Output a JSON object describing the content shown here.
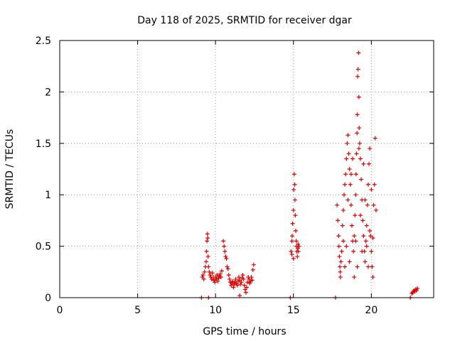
{
  "chart_data": {
    "type": "scatter",
    "title": "Day 118 of 2025, SRMTID for receiver dgar",
    "xlabel": "GPS time / hours",
    "ylabel": "SRMTID / TECUs",
    "xlim": [
      0,
      24
    ],
    "ylim": [
      0,
      2.5
    ],
    "xticks": [
      0,
      5,
      10,
      15,
      20
    ],
    "yticks": [
      0,
      0.5,
      1,
      1.5,
      2,
      2.5
    ],
    "xtick_labels": [
      "0",
      "5",
      "10",
      "15",
      "20"
    ],
    "ytick_labels": [
      "0",
      "0.5",
      "1",
      "1.5",
      "2",
      "2.5"
    ],
    "grid": true,
    "marker": "+",
    "color": "#dd0000",
    "series": [
      {
        "name": "SRMTID",
        "points": [
          [
            9.1,
            0.0
          ],
          [
            9.55,
            0.0
          ],
          [
            9.15,
            0.2
          ],
          [
            9.2,
            0.22
          ],
          [
            9.25,
            0.18
          ],
          [
            9.3,
            0.25
          ],
          [
            9.35,
            0.3
          ],
          [
            9.4,
            0.35
          ],
          [
            9.42,
            0.45
          ],
          [
            9.45,
            0.55
          ],
          [
            9.48,
            0.62
          ],
          [
            9.5,
            0.58
          ],
          [
            9.52,
            0.4
          ],
          [
            9.55,
            0.3
          ],
          [
            9.6,
            0.25
          ],
          [
            9.65,
            0.22
          ],
          [
            9.7,
            0.2
          ],
          [
            9.75,
            0.18
          ],
          [
            9.8,
            0.24
          ],
          [
            9.85,
            0.2
          ],
          [
            9.9,
            0.17
          ],
          [
            9.95,
            0.15
          ],
          [
            10.0,
            0.2
          ],
          [
            10.05,
            0.18
          ],
          [
            10.1,
            0.22
          ],
          [
            10.15,
            0.16
          ],
          [
            10.2,
            0.19
          ],
          [
            10.25,
            0.21
          ],
          [
            10.3,
            0.23
          ],
          [
            10.35,
            0.2
          ],
          [
            10.4,
            0.26
          ],
          [
            10.5,
            0.55
          ],
          [
            10.55,
            0.5
          ],
          [
            10.6,
            0.45
          ],
          [
            10.65,
            0.4
          ],
          [
            10.7,
            0.38
          ],
          [
            10.75,
            0.3
          ],
          [
            10.8,
            0.28
          ],
          [
            10.85,
            0.22
          ],
          [
            10.9,
            0.18
          ],
          [
            10.95,
            0.15
          ],
          [
            11.0,
            0.12
          ],
          [
            11.05,
            0.14
          ],
          [
            11.1,
            0.16
          ],
          [
            11.15,
            0.1
          ],
          [
            11.2,
            0.13
          ],
          [
            11.25,
            0.15
          ],
          [
            11.3,
            0.18
          ],
          [
            11.35,
            0.14
          ],
          [
            11.4,
            0.12
          ],
          [
            11.45,
            0.16
          ],
          [
            11.5,
            0.2
          ],
          [
            11.55,
            0.17
          ],
          [
            11.6,
            0.13
          ],
          [
            11.65,
            0.15
          ],
          [
            11.7,
            0.19
          ],
          [
            11.75,
            0.22
          ],
          [
            11.8,
            0.18
          ],
          [
            11.85,
            0.12
          ],
          [
            11.9,
            0.08
          ],
          [
            11.95,
            0.05
          ],
          [
            12.0,
            0.1
          ],
          [
            12.05,
            0.15
          ],
          [
            12.1,
            0.2
          ],
          [
            12.15,
            0.18
          ],
          [
            12.2,
            0.14
          ],
          [
            12.25,
            0.16
          ],
          [
            12.3,
            0.2
          ],
          [
            12.35,
            0.17
          ],
          [
            12.4,
            0.27
          ],
          [
            12.45,
            0.32
          ],
          [
            11.55,
            0.02
          ],
          [
            14.8,
            0.0
          ],
          [
            14.85,
            0.45
          ],
          [
            14.9,
            0.55
          ],
          [
            14.92,
            0.6
          ],
          [
            14.95,
            0.72
          ],
          [
            15.0,
            0.85
          ],
          [
            15.02,
            1.05
          ],
          [
            15.05,
            1.2
          ],
          [
            15.08,
            1.1
          ],
          [
            15.1,
            0.95
          ],
          [
            15.12,
            0.8
          ],
          [
            15.15,
            0.65
          ],
          [
            15.18,
            0.55
          ],
          [
            15.2,
            0.5
          ],
          [
            15.22,
            0.45
          ],
          [
            15.25,
            0.4
          ],
          [
            15.28,
            0.48
          ],
          [
            15.3,
            0.52
          ],
          [
            15.32,
            0.45
          ],
          [
            15.35,
            0.5
          ],
          [
            14.9,
            0.42
          ],
          [
            15.0,
            0.38
          ],
          [
            17.7,
            0.0
          ],
          [
            17.8,
            0.9
          ],
          [
            17.85,
            0.75
          ],
          [
            17.9,
            0.6
          ],
          [
            17.92,
            0.5
          ],
          [
            17.95,
            0.4
          ],
          [
            17.98,
            0.3
          ],
          [
            18.0,
            0.25
          ],
          [
            18.02,
            0.2
          ],
          [
            18.05,
            0.35
          ],
          [
            18.1,
            0.45
          ],
          [
            18.15,
            0.7
          ],
          [
            18.2,
            0.85
          ],
          [
            18.25,
            1.0
          ],
          [
            18.3,
            1.1
          ],
          [
            18.35,
            1.2
          ],
          [
            18.4,
            1.35
          ],
          [
            18.45,
            1.5
          ],
          [
            18.5,
            1.58
          ],
          [
            18.55,
            1.4
          ],
          [
            18.6,
            1.25
          ],
          [
            18.65,
            1.1
          ],
          [
            18.7,
            0.9
          ],
          [
            18.75,
            0.7
          ],
          [
            18.8,
            0.55
          ],
          [
            18.85,
            0.45
          ],
          [
            18.9,
            0.6
          ],
          [
            18.95,
            0.8
          ],
          [
            19.0,
            1.0
          ],
          [
            19.02,
            1.2
          ],
          [
            19.05,
            1.4
          ],
          [
            19.08,
            1.6
          ],
          [
            19.1,
            1.78
          ],
          [
            19.12,
            2.15
          ],
          [
            19.15,
            2.22
          ],
          [
            19.18,
            2.38
          ],
          [
            19.2,
            1.95
          ],
          [
            19.22,
            1.65
          ],
          [
            19.25,
            1.5
          ],
          [
            19.3,
            1.35
          ],
          [
            19.35,
            1.15
          ],
          [
            19.4,
            0.95
          ],
          [
            19.45,
            0.75
          ],
          [
            19.5,
            0.6
          ],
          [
            19.55,
            0.45
          ],
          [
            19.6,
            0.35
          ],
          [
            19.65,
            0.55
          ],
          [
            19.7,
            0.7
          ],
          [
            19.75,
            0.9
          ],
          [
            19.8,
            1.1
          ],
          [
            19.85,
            1.3
          ],
          [
            19.9,
            1.45
          ],
          [
            19.95,
            0.6
          ],
          [
            20.0,
            0.45
          ],
          [
            20.05,
            0.3
          ],
          [
            20.1,
            0.2
          ],
          [
            20.15,
            0.9
          ],
          [
            20.2,
            1.1
          ],
          [
            20.25,
            1.55
          ],
          [
            20.3,
            0.85
          ],
          [
            18.3,
            0.3
          ],
          [
            18.4,
            0.5
          ],
          [
            18.6,
            0.35
          ],
          [
            18.8,
            1.35
          ],
          [
            18.9,
            0.2
          ],
          [
            19.1,
            0.3
          ],
          [
            19.3,
            0.8
          ],
          [
            19.5,
            1.3
          ],
          [
            19.7,
            0.5
          ],
          [
            19.9,
            0.65
          ],
          [
            20.1,
            0.58
          ],
          [
            18.2,
            0.55
          ],
          [
            18.5,
            0.95
          ],
          [
            18.7,
            1.2
          ],
          [
            19.0,
            0.55
          ],
          [
            19.2,
            1.45
          ],
          [
            19.4,
            0.45
          ],
          [
            19.6,
            0.95
          ],
          [
            19.8,
            0.3
          ],
          [
            20.0,
            1.05
          ],
          [
            22.5,
            0.0
          ],
          [
            22.6,
            0.04
          ],
          [
            22.65,
            0.05
          ],
          [
            22.7,
            0.06
          ],
          [
            22.75,
            0.07
          ],
          [
            22.8,
            0.06
          ],
          [
            22.85,
            0.08
          ],
          [
            22.9,
            0.07
          ],
          [
            22.95,
            0.09
          ]
        ]
      }
    ]
  }
}
